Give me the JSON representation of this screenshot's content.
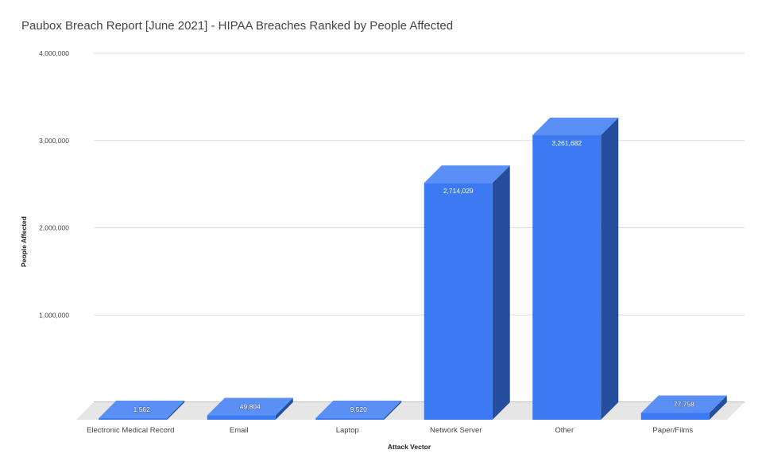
{
  "chart_data": {
    "type": "bar",
    "title": "Paubox Breach Report [June 2021] - HIPAA Breaches Ranked by People Affected",
    "xlabel": "Attack Vector",
    "ylabel": "People Affected",
    "categories": [
      "Electronic Medical Record",
      "Email",
      "Laptop",
      "Network Server",
      "Other",
      "Paper/Films"
    ],
    "values": [
      1562,
      49804,
      9520,
      2714029,
      3261682,
      77758
    ],
    "data_labels": [
      "1,562",
      "49,804",
      "9,520",
      "2,714,029",
      "3,261,682",
      "77,758"
    ],
    "yticks": [
      1000000,
      2000000,
      3000000,
      4000000
    ],
    "ytick_labels": [
      "1,000,000",
      "2,000,000",
      "3,000,000",
      "4,000,000"
    ],
    "ylim": [
      0,
      4000000
    ],
    "grid": true,
    "legend": "none",
    "style": "3d",
    "colors": {
      "front": "#3b7af2",
      "top": "#5a90f5",
      "side": "#254e9e",
      "floor": "#e6e6e6",
      "grid": "#dddddd"
    }
  }
}
